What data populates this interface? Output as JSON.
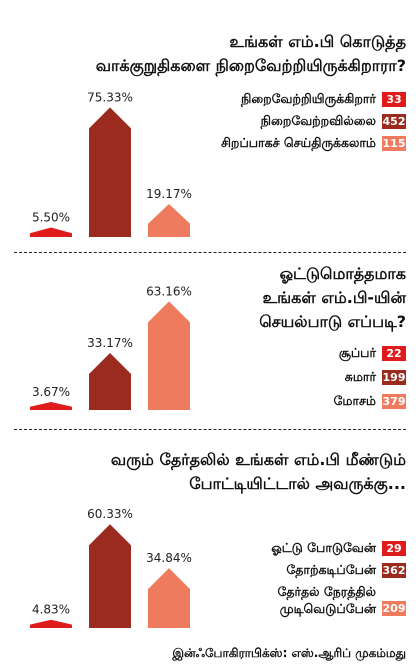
{
  "colors": {
    "red": "#e01b1b",
    "dark": "#9b2b1f",
    "light": "#ef7b5f"
  },
  "panels": [
    {
      "title_lines": [
        "உங்கள் எம்.பி கொடுத்த",
        "வாக்குறுதிகளை நிறைவேற்றியிருக்கிறாரா?"
      ],
      "legend": [
        {
          "label": "நிறைவேற்றியிருக்கிறார்",
          "count": "33"
        },
        {
          "label": "நிறைவேற்றவில்லை",
          "count": "452"
        },
        {
          "label": "சிறப்பாகச் செய்திருக்கலாம்",
          "count": "115"
        }
      ]
    },
    {
      "title_lines": [
        "ஓட்டுமொத்தமாக",
        "உங்கள் எம்.பி-யின்",
        "செயல்பாடு எப்படி?"
      ],
      "legend": [
        {
          "label": "சூப்பர்",
          "count": "22"
        },
        {
          "label": "சுமார்",
          "count": "199"
        },
        {
          "label": "மோசம்",
          "count": "379"
        }
      ]
    },
    {
      "title_lines": [
        "வரும் தேர்தலில் உங்கள் எம்.பி மீண்டும்",
        "போட்டியிட்டால் அவருக்கு..."
      ],
      "legend": [
        {
          "label": "ஓட்டு போடுவேன்",
          "count": "29"
        },
        {
          "label": "தோற்கடிப்பேன்",
          "count": "362"
        },
        {
          "label_lines": [
            "தேர்தல் நேரத்தில்",
            "முடிவெடுப்பேன்"
          ],
          "count": "209"
        }
      ]
    }
  ],
  "chart_data": [
    {
      "type": "bar",
      "title": "உங்கள் எம்.பி கொடுத்த வாக்குறுதிகளை நிறைவேற்றியிருக்கிறாரா?",
      "categories": [
        "நிறைவேற்றியிருக்கிறார்",
        "நிறைவேற்றவில்லை",
        "சிறப்பாகச் செய்திருக்கலாம்"
      ],
      "values": [
        5.5,
        75.33,
        19.17
      ],
      "labels": [
        "5.50%",
        "75.33%",
        "19.17%"
      ],
      "counts": [
        33,
        452,
        115
      ],
      "colors": [
        "#e01b1b",
        "#9b2b1f",
        "#ef7b5f"
      ]
    },
    {
      "type": "bar",
      "title": "ஓட்டுமொத்தமாக உங்கள் எம்.பி-யின் செயல்பாடு எப்படி?",
      "categories": [
        "சூப்பர்",
        "சுமார்",
        "மோசம்"
      ],
      "values": [
        3.67,
        33.17,
        63.16
      ],
      "labels": [
        "3.67%",
        "33.17%",
        "63.16%"
      ],
      "counts": [
        22,
        199,
        379
      ],
      "colors": [
        "#e01b1b",
        "#9b2b1f",
        "#ef7b5f"
      ]
    },
    {
      "type": "bar",
      "title": "வரும் தேர்தலில் உங்கள் எம்.பி மீண்டும் போட்டியிட்டால் அவருக்கு...",
      "categories": [
        "ஓட்டு போடுவேன்",
        "தோற்கடிப்பேன்",
        "தேர்தல் நேரத்தில் முடிவெடுப்பேன்"
      ],
      "values": [
        4.83,
        60.33,
        34.84
      ],
      "labels": [
        "4.83%",
        "60.33%",
        "34.84%"
      ],
      "counts": [
        29,
        362,
        209
      ],
      "colors": [
        "#e01b1b",
        "#9b2b1f",
        "#ef7b5f"
      ]
    }
  ],
  "footer": {
    "credit": "இன்ஃபோகிராபிக்ஸ்: எஸ்.ஆரிப் முகம்மது"
  }
}
